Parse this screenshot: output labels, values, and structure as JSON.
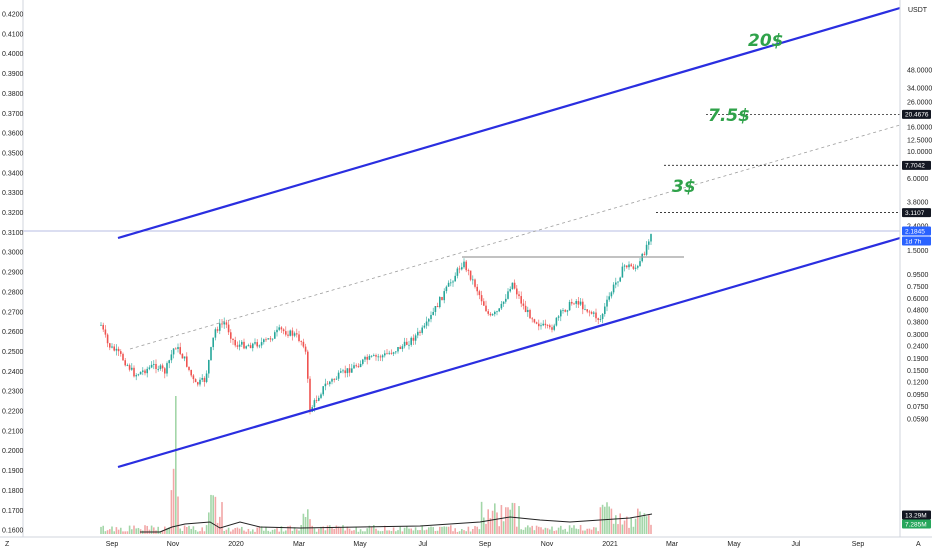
{
  "chart_data": {
    "type": "candlestick",
    "unit_label": "USDT",
    "left_axis": {
      "ticks": [
        "0.4200",
        "0.4100",
        "0.4000",
        "0.3900",
        "0.3800",
        "0.3700",
        "0.3600",
        "0.3500",
        "0.3400",
        "0.3300",
        "0.3200",
        "0.3100",
        "0.3000",
        "0.2900",
        "0.2800",
        "0.2700",
        "0.2600",
        "0.2500",
        "0.2400",
        "0.2300",
        "0.2200",
        "0.2100",
        "0.2000",
        "0.1900",
        "0.1800",
        "0.1700",
        "0.1600"
      ]
    },
    "right_axis": {
      "scale": "log",
      "ticks": [
        "48.0000",
        "34.0000",
        "26.0000",
        "16.0000",
        "12.5000",
        "10.0000",
        "6.0000",
        "3.8000",
        "2.4000",
        "1.5000",
        "0.9500",
        "0.7500",
        "0.6000",
        "0.4800",
        "0.3800",
        "0.3000",
        "0.2400",
        "0.1900",
        "0.1500",
        "0.1200",
        "0.0950",
        "0.0750",
        "0.0590"
      ]
    },
    "x_axis": {
      "ticks": [
        "Sep",
        "Nov",
        "2020",
        "Mar",
        "May",
        "Jul",
        "Sep",
        "Nov",
        "2021",
        "Mar",
        "May",
        "Jul",
        "Sep"
      ]
    },
    "price_tags": [
      {
        "value": "20.4676",
        "style": "dark"
      },
      {
        "value": "7.7042",
        "style": "dark"
      },
      {
        "value": "3.1107",
        "style": "dark"
      },
      {
        "value": "2.1845",
        "style": "blue"
      },
      {
        "value": "1d 7h",
        "style": "blue"
      },
      {
        "value": "13.29M",
        "style": "dark"
      },
      {
        "value": "7.285M",
        "style": "green"
      }
    ],
    "targets": [
      {
        "label": "20$",
        "level": 20.4676
      },
      {
        "label": "7.5$",
        "level": 7.7042
      },
      {
        "label": "3$",
        "level": 3.1107
      }
    ],
    "colors": {
      "channel": "#2a2ee0",
      "up": "#26a69a",
      "down": "#ef5350",
      "up_volume": "#a3d6a8",
      "down_volume": "#f2a7a7",
      "target_text": "#2fa24a",
      "current_price_line": "#9fa8da"
    },
    "grid": false
  },
  "footer": {
    "tv_logo": "Z",
    "scale_mode": "A"
  }
}
